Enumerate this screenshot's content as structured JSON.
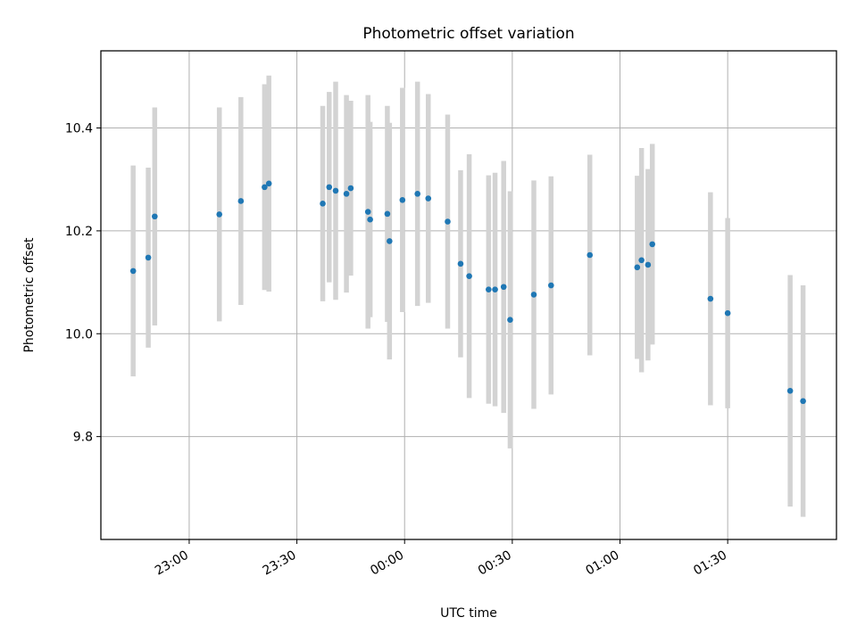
{
  "chart_data": {
    "type": "scatter",
    "title": "Photometric offset variation",
    "xlabel": "UTC time",
    "ylabel": "Photometric offset",
    "x_tick_labels": [
      "23:00",
      "23:30",
      "00:00",
      "00:30",
      "01:00",
      "01:30"
    ],
    "y_tick_labels": [
      "9.8",
      "10.0",
      "10.2",
      "10.4"
    ],
    "x_ticks": [
      -60,
      -30,
      0,
      30,
      60,
      90
    ],
    "y_ticks": [
      9.8,
      10.0,
      10.2,
      10.4
    ],
    "xlim": [
      -84.6,
      120.3
    ],
    "ylim": [
      9.6,
      10.55
    ],
    "grid": true,
    "marker_color": "#1f77b4",
    "errorbar_color": "#d3d3d3",
    "points": [
      {
        "x": -75.6,
        "y": 10.122,
        "err": 0.205
      },
      {
        "x": -71.4,
        "y": 10.148,
        "err": 0.175
      },
      {
        "x": -69.6,
        "y": 10.228,
        "err": 0.212
      },
      {
        "x": -51.6,
        "y": 10.232,
        "err": 0.208
      },
      {
        "x": -45.6,
        "y": 10.258,
        "err": 0.202
      },
      {
        "x": -39.0,
        "y": 10.285,
        "err": 0.2
      },
      {
        "x": -37.8,
        "y": 10.292,
        "err": 0.21
      },
      {
        "x": -22.8,
        "y": 10.253,
        "err": 0.19
      },
      {
        "x": -21.0,
        "y": 10.285,
        "err": 0.185
      },
      {
        "x": -19.2,
        "y": 10.278,
        "err": 0.212
      },
      {
        "x": -16.2,
        "y": 10.272,
        "err": 0.192
      },
      {
        "x": -15.0,
        "y": 10.283,
        "err": 0.17
      },
      {
        "x": -10.2,
        "y": 10.237,
        "err": 0.227
      },
      {
        "x": -9.6,
        "y": 10.222,
        "err": 0.19
      },
      {
        "x": -4.8,
        "y": 10.233,
        "err": 0.21
      },
      {
        "x": -4.2,
        "y": 10.18,
        "err": 0.23
      },
      {
        "x": -0.6,
        "y": 10.26,
        "err": 0.218
      },
      {
        "x": 3.6,
        "y": 10.272,
        "err": 0.218
      },
      {
        "x": 6.6,
        "y": 10.263,
        "err": 0.203
      },
      {
        "x": 12.0,
        "y": 10.218,
        "err": 0.208
      },
      {
        "x": 15.6,
        "y": 10.136,
        "err": 0.182
      },
      {
        "x": 18.0,
        "y": 10.112,
        "err": 0.237
      },
      {
        "x": 23.4,
        "y": 10.086,
        "err": 0.222
      },
      {
        "x": 25.2,
        "y": 10.086,
        "err": 0.227
      },
      {
        "x": 27.6,
        "y": 10.091,
        "err": 0.245
      },
      {
        "x": 29.4,
        "y": 10.027,
        "err": 0.25
      },
      {
        "x": 36.0,
        "y": 10.076,
        "err": 0.222
      },
      {
        "x": 40.8,
        "y": 10.094,
        "err": 0.212
      },
      {
        "x": 51.6,
        "y": 10.153,
        "err": 0.195
      },
      {
        "x": 64.8,
        "y": 10.129,
        "err": 0.178
      },
      {
        "x": 66.0,
        "y": 10.143,
        "err": 0.218
      },
      {
        "x": 67.8,
        "y": 10.134,
        "err": 0.186
      },
      {
        "x": 69.0,
        "y": 10.174,
        "err": 0.195
      },
      {
        "x": 85.2,
        "y": 10.068,
        "err": 0.207
      },
      {
        "x": 90.0,
        "y": 10.04,
        "err": 0.185
      },
      {
        "x": 107.4,
        "y": 9.889,
        "err": 0.225
      },
      {
        "x": 111.0,
        "y": 9.869,
        "err": 0.225
      }
    ]
  }
}
